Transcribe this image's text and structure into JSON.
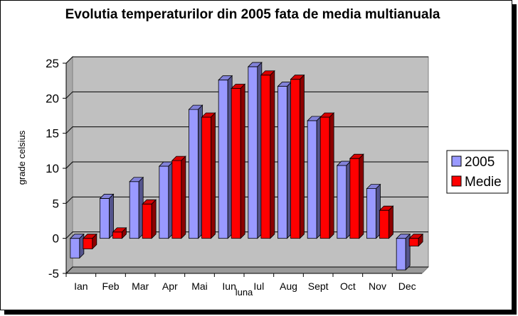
{
  "chart_data": {
    "type": "bar",
    "title": "Evolutia temperaturilor din 2005 fata de media multianuala",
    "xlabel": "luna",
    "ylabel": "grade celsius",
    "categories": [
      "Ian",
      "Feb",
      "Mar",
      "Apr",
      "Mai",
      "Iun",
      "Iul",
      "Aug",
      "Sept",
      "Oct",
      "Nov",
      "Dec"
    ],
    "series": [
      {
        "name": "2005",
        "color": "#9999ff",
        "values": [
          -2.8,
          5.7,
          8.1,
          10.3,
          18.4,
          22.6,
          24.5,
          21.7,
          16.8,
          10.4,
          7.1,
          -4.5
        ]
      },
      {
        "name": "Medie",
        "color": "#ff0000",
        "values": [
          -1.5,
          0.9,
          4.9,
          11.1,
          17.3,
          21.4,
          23.3,
          22.7,
          17.3,
          11.4,
          4.0,
          -1.1
        ]
      }
    ],
    "ylim": [
      -5,
      25
    ],
    "yticks": [
      -5,
      0,
      5,
      10,
      15,
      20,
      25
    ],
    "grid": true,
    "legend_position": "right",
    "style": "3d-clustered-columns"
  }
}
